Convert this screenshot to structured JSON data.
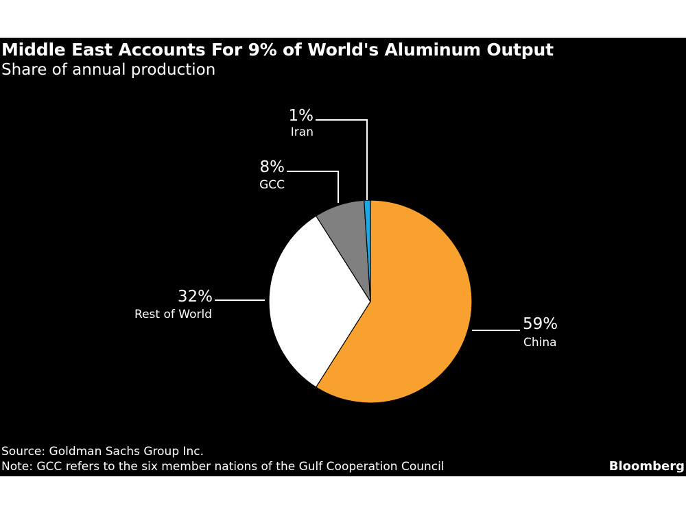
{
  "chart_data": {
    "type": "pie",
    "title": "Middle East Accounts For 9% of World's Aluminum Output",
    "subtitle": "Share of annual production",
    "slices": [
      {
        "label": "China",
        "value": 59,
        "display": "59%",
        "color": "#f9a12e"
      },
      {
        "label": "Rest of World",
        "value": 32,
        "display": "32%",
        "color": "#ffffff"
      },
      {
        "label": "GCC",
        "value": 8,
        "display": "8%",
        "color": "#808080"
      },
      {
        "label": "Iran",
        "value": 1,
        "display": "1%",
        "color": "#1fa7e3"
      }
    ],
    "start": "top",
    "direction": "clockwise"
  },
  "footer": {
    "source": "Source: Goldman Sachs Group Inc.",
    "note": "Note: GCC refers to the six member nations of the Gulf Cooperation Council",
    "brand": "Bloomberg"
  }
}
